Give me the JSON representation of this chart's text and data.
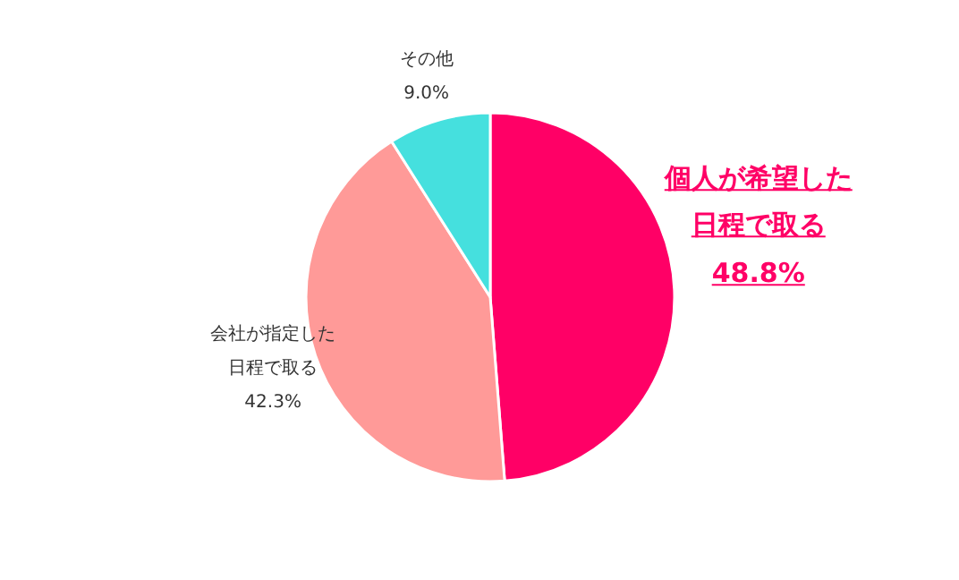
{
  "chart_data": {
    "type": "pie",
    "categories": [
      "個人が希望した日程で取る",
      "会社が指定した日程で取る",
      "その他"
    ],
    "values": [
      48.8,
      42.3,
      9.0
    ],
    "value_labels": [
      "48.8%",
      "42.3%",
      "9.0%"
    ],
    "colors": [
      "#ff0066",
      "#ff9a98",
      "#45e0de"
    ]
  }
}
